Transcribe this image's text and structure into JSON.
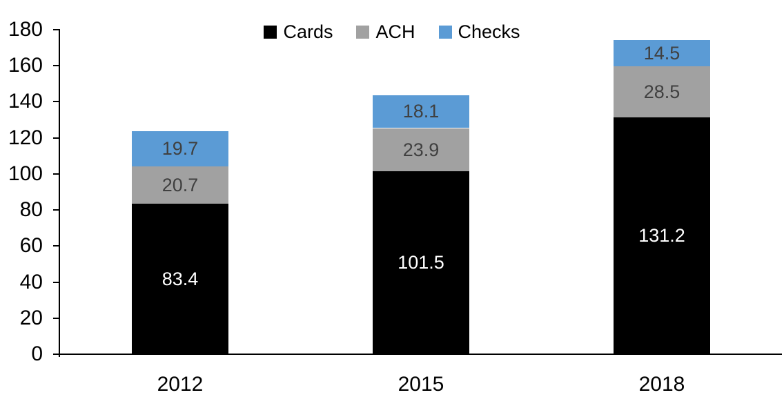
{
  "chart_data": {
    "type": "bar",
    "stacked": true,
    "title": "",
    "xlabel": "",
    "ylabel": "",
    "categories": [
      "2012",
      "2015",
      "2018"
    ],
    "series": [
      {
        "name": "Cards",
        "color": "#000000",
        "label_color": "#ffffff",
        "values": [
          83.4,
          101.5,
          131.2
        ]
      },
      {
        "name": "ACH",
        "color": "#a1a1a1",
        "label_color": "#404040",
        "values": [
          20.7,
          23.9,
          28.5
        ]
      },
      {
        "name": "Checks",
        "color": "#5b9bd5",
        "label_color": "#404040",
        "values": [
          19.7,
          18.1,
          14.5
        ]
      }
    ],
    "totals": [
      123.8,
      143.5,
      174.2
    ],
    "ylim": [
      0,
      180
    ],
    "yticks": [
      0,
      20,
      40,
      60,
      80,
      100,
      120,
      140,
      160,
      180
    ],
    "grid": false,
    "legend_position": "top-center",
    "axis_color": "#000000"
  }
}
